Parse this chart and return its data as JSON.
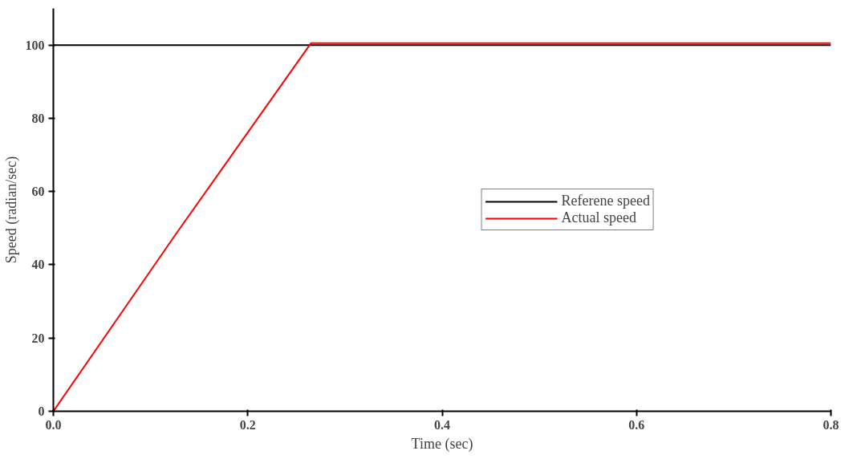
{
  "chart_data": {
    "type": "line",
    "xlabel": "Time (sec)",
    "ylabel": "Speed (radian/sec)",
    "xlim": [
      0,
      0.8
    ],
    "ylim": [
      0,
      110
    ],
    "xticks": [
      {
        "value": 0,
        "label": "0.0"
      },
      {
        "value": 0.2,
        "label": "0.2"
      },
      {
        "value": 0.4,
        "label": "0.4"
      },
      {
        "value": 0.6,
        "label": "0.6"
      },
      {
        "value": 0.8,
        "label": "0.8"
      }
    ],
    "yticks": [
      0,
      20,
      40,
      60,
      80,
      100
    ],
    "series": [
      {
        "name": "Referene speed",
        "color": "#000000",
        "x": [
          0,
          0.8
        ],
        "values": [
          100,
          100
        ]
      },
      {
        "name": "Actual speed",
        "color": "#ff0000",
        "x": [
          0,
          0.125,
          0.265,
          0.8
        ],
        "values": [
          0,
          48,
          100.5,
          100.5
        ]
      }
    ],
    "grid": false,
    "legend": "right",
    "marker": "none",
    "line_style": "solid"
  }
}
